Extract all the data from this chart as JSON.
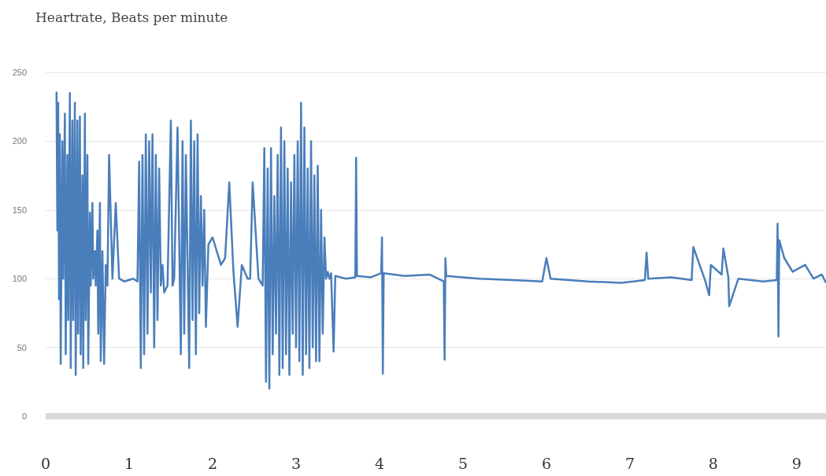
{
  "chart_data": {
    "type": "line",
    "title": "Heartrate, Beats per minute",
    "series": [
      {
        "color": "#4a7ebb",
        "x": [
          0.13,
          0.14,
          0.15,
          0.16,
          0.17,
          0.18,
          0.2,
          0.21,
          0.23,
          0.24,
          0.26,
          0.27,
          0.29,
          0.3,
          0.32,
          0.33,
          0.35,
          0.36,
          0.38,
          0.39,
          0.41,
          0.42,
          0.44,
          0.45,
          0.47,
          0.48,
          0.5,
          0.51,
          0.53,
          0.54,
          0.56,
          0.57,
          0.59,
          0.6,
          0.62,
          0.63,
          0.65,
          0.66,
          0.68,
          0.7,
          0.72,
          0.74,
          0.76,
          0.8,
          0.84,
          0.88,
          0.94,
          1.05,
          1.1,
          1.12,
          1.14,
          1.16,
          1.18,
          1.2,
          1.22,
          1.24,
          1.26,
          1.28,
          1.3,
          1.32,
          1.34,
          1.36,
          1.38,
          1.4,
          1.42,
          1.46,
          1.5,
          1.52,
          1.54,
          1.58,
          1.62,
          1.64,
          1.66,
          1.68,
          1.72,
          1.74,
          1.76,
          1.78,
          1.8,
          1.82,
          1.84,
          1.86,
          1.88,
          1.9,
          1.92,
          1.95,
          2.0,
          2.05,
          2.1,
          2.15,
          2.2,
          2.25,
          2.3,
          2.35,
          2.42,
          2.45,
          2.48,
          2.55,
          2.6,
          2.62,
          2.64,
          2.66,
          2.68,
          2.7,
          2.72,
          2.74,
          2.76,
          2.78,
          2.8,
          2.82,
          2.84,
          2.86,
          2.88,
          2.9,
          2.92,
          2.94,
          2.96,
          2.98,
          3.0,
          3.02,
          3.04,
          3.06,
          3.08,
          3.1,
          3.12,
          3.14,
          3.16,
          3.18,
          3.2,
          3.22,
          3.24,
          3.26,
          3.28,
          3.3,
          3.32,
          3.34,
          3.36,
          3.38,
          3.4,
          3.42,
          3.45,
          3.47,
          3.6,
          3.71,
          3.72,
          3.73,
          3.9,
          4.02,
          4.03,
          4.04,
          4.05,
          4.3,
          4.6,
          4.77,
          4.78,
          4.79,
          4.8,
          5.2,
          5.6,
          5.95,
          6.0,
          6.05,
          6.5,
          6.9,
          7.18,
          7.2,
          7.22,
          7.5,
          7.74,
          7.76,
          7.9,
          7.95,
          7.97,
          8.1,
          8.12,
          8.18,
          8.19,
          8.3,
          8.6,
          8.76,
          8.77,
          8.78,
          8.79,
          8.85,
          8.95,
          9.1,
          9.2,
          9.3,
          9.35
        ],
        "values": [
          236,
          135,
          228,
          85,
          205,
          38,
          200,
          100,
          220,
          45,
          190,
          70,
          235,
          35,
          215,
          70,
          228,
          30,
          215,
          60,
          218,
          45,
          175,
          35,
          220,
          70,
          190,
          38,
          148,
          95,
          155,
          100,
          120,
          95,
          135,
          60,
          155,
          40,
          120,
          38,
          110,
          95,
          190,
          100,
          155,
          100,
          98,
          100,
          98,
          185,
          35,
          190,
          45,
          205,
          60,
          200,
          90,
          205,
          50,
          190,
          70,
          180,
          95,
          110,
          90,
          95,
          215,
          95,
          100,
          210,
          45,
          200,
          60,
          190,
          35,
          215,
          70,
          200,
          45,
          205,
          75,
          160,
          95,
          150,
          65,
          125,
          130,
          120,
          110,
          115,
          170,
          105,
          65,
          110,
          100,
          100,
          170,
          100,
          95,
          195,
          25,
          180,
          20,
          195,
          45,
          160,
          60,
          190,
          30,
          210,
          35,
          200,
          45,
          180,
          30,
          170,
          60,
          190,
          50,
          200,
          40,
          228,
          30,
          210,
          45,
          180,
          35,
          200,
          50,
          175,
          40,
          182,
          40,
          150,
          60,
          130,
          100,
          105,
          100,
          104,
          47,
          102,
          100,
          101,
          188,
          102,
          101,
          104,
          130,
          31,
          104,
          102,
          103,
          98,
          41,
          115,
          102,
          100,
          99,
          98,
          115,
          100,
          98,
          97,
          99,
          119,
          100,
          101,
          99,
          123,
          99,
          88,
          110,
          103,
          122,
          101,
          80,
          100,
          98,
          99,
          140,
          58,
          128,
          115,
          105,
          110,
          100,
          103,
          97
        ]
      }
    ],
    "xlim": [
      0,
      9.35
    ],
    "xticks": [
      0,
      1,
      2,
      3,
      4,
      5,
      6,
      7,
      8,
      9
    ],
    "ylim": [
      0,
      250
    ],
    "yticks": [
      0,
      50,
      100,
      150,
      200,
      250
    ],
    "grid": "y",
    "marker": "none",
    "line_style": "solid"
  }
}
